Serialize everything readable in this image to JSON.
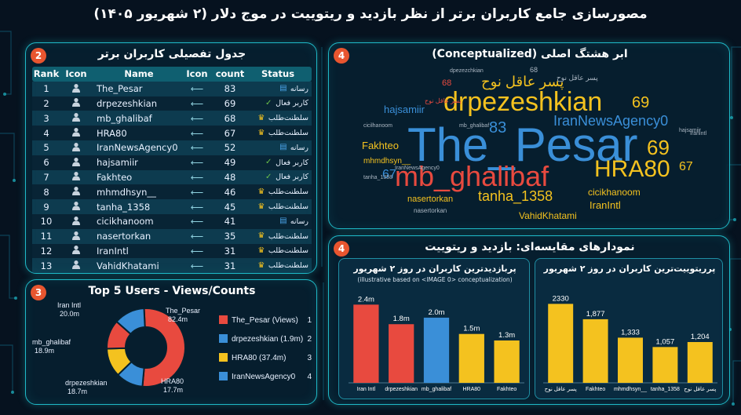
{
  "page": {
    "title": "مصورسازی جامع کاربران برتر از نظر بازدید و ریتوییت در موج دلار (۲ شهریور ۱۴۰۵)"
  },
  "colors": {
    "accent": "#1fb9c7",
    "badge": "#e8552f",
    "red": "#e84a3f",
    "blue": "#3a8fd8",
    "yellow": "#f4c21f",
    "green": "#6cc24a",
    "crown": "#f4c21f"
  },
  "table_panel": {
    "badge": "2",
    "title": "جدول تفصیلی کاربران برتر",
    "headers": [
      "Rank",
      "Icon",
      "Name",
      "Icon",
      "count",
      "Status"
    ],
    "status_icons": {
      "رسانه": "media-icon",
      "کاربر فعال": "check-circle-icon",
      "سلطنت‌طلب": "crown-icon"
    },
    "rows": [
      {
        "rank": "1",
        "name": "The_Pesar",
        "count": "83",
        "status": "رسانه"
      },
      {
        "rank": "2",
        "name": "drpezeshkian",
        "count": "69",
        "status": "کاربر فعال"
      },
      {
        "rank": "3",
        "name": "mb_ghalibaf",
        "count": "68",
        "status": "سلطنت‌طلب"
      },
      {
        "rank": "4",
        "name": "HRA80",
        "count": "67",
        "status": "سلطنت‌طلب"
      },
      {
        "rank": "5",
        "name": "IranNewsAgency0",
        "count": "52",
        "status": "رسانه"
      },
      {
        "rank": "6",
        "name": "hajsamiir",
        "count": "49",
        "status": "کاربر فعال"
      },
      {
        "rank": "7",
        "name": "Fakhteo",
        "count": "48",
        "status": "کاربر فعال"
      },
      {
        "rank": "8",
        "name": "mhmdhsyn__",
        "count": "46",
        "status": "سلطنت‌طلب"
      },
      {
        "rank": "9",
        "name": "tanha_1358",
        "count": "45",
        "status": "سلطنت‌طلب"
      },
      {
        "rank": "10",
        "name": "cicikhanoom",
        "count": "41",
        "status": "رسانه"
      },
      {
        "rank": "11",
        "name": "nasertorkan",
        "count": "35",
        "status": "سلطنت‌طلب"
      },
      {
        "rank": "12",
        "name": "IranIntl",
        "count": "31",
        "status": "سلطنت‌طلب"
      },
      {
        "rank": "13",
        "name": "VahidKhatami",
        "count": "31",
        "status": "سلطنت‌طلب"
      }
    ]
  },
  "donut_panel": {
    "badge": "3",
    "title": "Top 5 Users - Views/Counts"
  },
  "cloud_panel": {
    "badge": "4",
    "title": "ابر هشتگ اصلی (Conceptualized)",
    "words": [
      {
        "text": "The_Pesar",
        "color": "#3a8fd8",
        "size": 60
      },
      {
        "text": "drpezeshkian",
        "color": "#f4c21f",
        "size": 34
      },
      {
        "text": "mb_ghalibaf",
        "color": "#e84a3f",
        "size": 36
      },
      {
        "text": "HRA80",
        "color": "#f4c21f",
        "size": 30
      },
      {
        "text": "IranNewsAgency0",
        "color": "#3a8fd8",
        "size": 18
      },
      {
        "text": "پسر عاقل نوح",
        "color": "#f4c21f",
        "size": 18
      },
      {
        "text": "tanha_1358",
        "color": "#f4c21f",
        "size": 18
      },
      {
        "text": "hajsamiir",
        "color": "#3a8fd8",
        "size": 13
      },
      {
        "text": "Fakhteo",
        "color": "#f4c21f",
        "size": 13
      },
      {
        "text": "mhmdhsyn__",
        "color": "#f4c21f",
        "size": 10
      },
      {
        "text": "cicikhanoom",
        "color": "#f4c21f",
        "size": 12
      },
      {
        "text": "IranIntl",
        "color": "#f4c21f",
        "size": 13
      },
      {
        "text": "nasertorkan",
        "color": "#f4c21f",
        "size": 11
      },
      {
        "text": "VahidKhatami",
        "color": "#f4c21f",
        "size": 12
      },
      {
        "text": "83",
        "color": "#3a8fd8",
        "size": 20
      },
      {
        "text": "69",
        "color": "#f4c21f",
        "size": 20
      },
      {
        "text": "69",
        "color": "#f4c21f",
        "size": 26
      },
      {
        "text": "67",
        "color": "#f4c21f",
        "size": 16
      },
      {
        "text": "67",
        "color": "#3a8fd8",
        "size": 16
      },
      {
        "text": "68",
        "color": "#e84a3f",
        "size": 11
      },
      {
        "text": "68",
        "color": "#aab6c2",
        "size": 9
      },
      {
        "text": "پسر عاقل نوح",
        "color": "#aab6c2",
        "size": 9
      },
      {
        "text": "پسر عاقل نوح",
        "color": "#e84a3f",
        "size": 8
      },
      {
        "text": "dpezezchkian",
        "color": "#aab6c2",
        "size": 7
      },
      {
        "text": "nasertorkan",
        "color": "#aab6c2",
        "size": 8
      },
      {
        "text": "IranNewsAgency0",
        "color": "#aab6c2",
        "size": 7
      },
      {
        "text": "mb_ghalibaf",
        "color": "#aab6c2",
        "size": 7
      },
      {
        "text": "cicilhanoom",
        "color": "#aab6c2",
        "size": 7
      },
      {
        "text": "hajsamiir",
        "color": "#aab6c2",
        "size": 7
      },
      {
        "text": "Iranintl",
        "color": "#aab6c2",
        "size": 7
      },
      {
        "text": "tanha_1358",
        "color": "#aab6c2",
        "size": 7
      }
    ]
  },
  "bars_panel": {
    "badge": "4",
    "title": "نمودارهای مقایسه‌ای: بازدید و ریتوییت"
  },
  "chart_data": [
    {
      "type": "pie",
      "title": "Top 5 Users - Views/Counts",
      "slices": [
        {
          "label": "The_Pesar",
          "value": 82.4,
          "value_label": "82.4m",
          "color": "#e84a3f"
        },
        {
          "label": "HRA80",
          "value": 17.7,
          "value_label": "17.7m",
          "color": "#3a8fd8"
        },
        {
          "label": "drpezeshkian",
          "value": 18.7,
          "value_label": "18.7m",
          "color": "#f4c21f"
        },
        {
          "label": "mb_ghalibaf",
          "value": 18.9,
          "value_label": "18.9m",
          "color": "#e84a3f"
        },
        {
          "label": "Iran Intl",
          "value": 20.0,
          "value_label": "20.0m",
          "color": "#3a8fd8"
        }
      ],
      "legend": [
        {
          "label": "The_Pesar (Views)",
          "num": "1",
          "color": "#e84a3f"
        },
        {
          "label": "drpezeshkian (1.9m)",
          "num": "2",
          "color": "#3a8fd8"
        },
        {
          "label": "HRA80 (37.4m)",
          "num": "3",
          "color": "#f4c21f"
        },
        {
          "label": "IranNewsAgency0",
          "num": "4",
          "color": "#3a8fd8"
        }
      ],
      "legend_position": "right"
    },
    {
      "type": "bar",
      "title": "پربازدیدترین کاربران در روز ۲ شهریور",
      "subtitle": "(illustrative based on <IMAGE 0> conceptualization)",
      "categories": [
        "Iran Intl",
        "drpezeshkian",
        "mb_ghalibaf",
        "HRA80",
        "Fakhteo"
      ],
      "values": [
        2.4,
        1.8,
        2.0,
        1.5,
        1.3
      ],
      "value_labels": [
        "2.4m",
        "1.8m",
        "2.0m",
        "1.5m",
        "1.3m"
      ],
      "colors": [
        "#e84a3f",
        "#e84a3f",
        "#3a8fd8",
        "#f4c21f",
        "#f4c21f"
      ],
      "ylim": [
        0,
        2.6
      ]
    },
    {
      "type": "bar",
      "title": "پرریتوییت‌ترین کاربران در روز ۲ شهریور",
      "categories": [
        "پسر عاقل نوح",
        "Fakhteo",
        "mhmdhsyn__",
        "tanha_1358",
        "پسر عاقل نوح"
      ],
      "values": [
        2330,
        1877,
        1333,
        1057,
        1204
      ],
      "value_labels": [
        "2330",
        "1,877",
        "1,333",
        "1,057",
        "1,204"
      ],
      "colors": [
        "#f4c21f",
        "#f4c21f",
        "#f4c21f",
        "#f4c21f",
        "#f4c21f"
      ],
      "ylim": [
        0,
        2500
      ]
    }
  ]
}
